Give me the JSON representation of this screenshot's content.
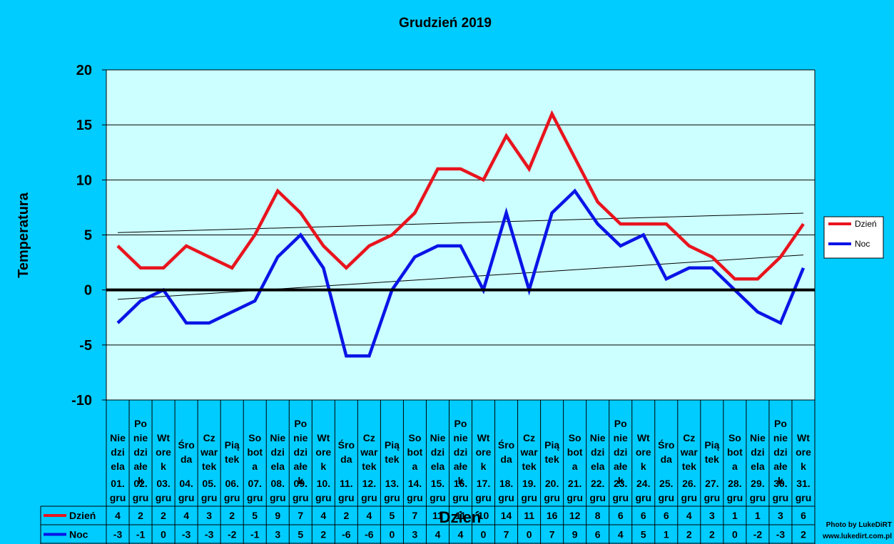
{
  "chart_data": {
    "type": "line",
    "title": "Grudzień 2019",
    "xlabel": "Dzień",
    "ylabel": "Temperatura",
    "ylim": [
      -10,
      20
    ],
    "yticks": [
      20,
      15,
      10,
      5,
      0,
      -5,
      -10
    ],
    "grid": true,
    "legend_position": "right",
    "categories": [
      {
        "weekday": [
          "Nie",
          "dzi",
          "ela"
        ],
        "date": [
          "01.",
          "gru"
        ]
      },
      {
        "weekday": [
          "Po",
          "nie",
          "dzi",
          "ałe",
          "k"
        ],
        "date": [
          "02.",
          "gru"
        ]
      },
      {
        "weekday": [
          "Wt",
          "ore",
          "k"
        ],
        "date": [
          "03.",
          "gru"
        ]
      },
      {
        "weekday": [
          "Śro",
          "da"
        ],
        "date": [
          "04.",
          "gru"
        ]
      },
      {
        "weekday": [
          "Cz",
          "war",
          "tek"
        ],
        "date": [
          "05.",
          "gru"
        ]
      },
      {
        "weekday": [
          "Pią",
          "tek"
        ],
        "date": [
          "06.",
          "gru"
        ]
      },
      {
        "weekday": [
          "So",
          "bot",
          "a"
        ],
        "date": [
          "07.",
          "gru"
        ]
      },
      {
        "weekday": [
          "Nie",
          "dzi",
          "ela"
        ],
        "date": [
          "08.",
          "gru"
        ]
      },
      {
        "weekday": [
          "Po",
          "nie",
          "dzi",
          "ałe",
          "k"
        ],
        "date": [
          "09.",
          "gru"
        ]
      },
      {
        "weekday": [
          "Wt",
          "ore",
          "k"
        ],
        "date": [
          "10.",
          "gru"
        ]
      },
      {
        "weekday": [
          "Śro",
          "da"
        ],
        "date": [
          "11.",
          "gru"
        ]
      },
      {
        "weekday": [
          "Cz",
          "war",
          "tek"
        ],
        "date": [
          "12.",
          "gru"
        ]
      },
      {
        "weekday": [
          "Pią",
          "tek"
        ],
        "date": [
          "13.",
          "gru"
        ]
      },
      {
        "weekday": [
          "So",
          "bot",
          "a"
        ],
        "date": [
          "14.",
          "gru"
        ]
      },
      {
        "weekday": [
          "Nie",
          "dzi",
          "ela"
        ],
        "date": [
          "15.",
          "gru"
        ]
      },
      {
        "weekday": [
          "Po",
          "nie",
          "dzi",
          "ałe",
          "k"
        ],
        "date": [
          "16.",
          "gru"
        ]
      },
      {
        "weekday": [
          "Wt",
          "ore",
          "k"
        ],
        "date": [
          "17.",
          "gru"
        ]
      },
      {
        "weekday": [
          "Śro",
          "da"
        ],
        "date": [
          "18.",
          "gru"
        ]
      },
      {
        "weekday": [
          "Cz",
          "war",
          "tek"
        ],
        "date": [
          "19.",
          "gru"
        ]
      },
      {
        "weekday": [
          "Pią",
          "tek"
        ],
        "date": [
          "20.",
          "gru"
        ]
      },
      {
        "weekday": [
          "So",
          "bot",
          "a"
        ],
        "date": [
          "21.",
          "gru"
        ]
      },
      {
        "weekday": [
          "Nie",
          "dzi",
          "ela"
        ],
        "date": [
          "22.",
          "gru"
        ]
      },
      {
        "weekday": [
          "Po",
          "nie",
          "dzi",
          "ałe",
          "k"
        ],
        "date": [
          "23.",
          "gru"
        ]
      },
      {
        "weekday": [
          "Wt",
          "ore",
          "k"
        ],
        "date": [
          "24.",
          "gru"
        ]
      },
      {
        "weekday": [
          "Śro",
          "da"
        ],
        "date": [
          "25.",
          "gru"
        ]
      },
      {
        "weekday": [
          "Cz",
          "war",
          "tek"
        ],
        "date": [
          "26.",
          "gru"
        ]
      },
      {
        "weekday": [
          "Pią",
          "tek"
        ],
        "date": [
          "27.",
          "gru"
        ]
      },
      {
        "weekday": [
          "So",
          "bot",
          "a"
        ],
        "date": [
          "28.",
          "gru"
        ]
      },
      {
        "weekday": [
          "Nie",
          "dzi",
          "ela"
        ],
        "date": [
          "29.",
          "gru"
        ]
      },
      {
        "weekday": [
          "Po",
          "nie",
          "dzi",
          "ałe",
          "k"
        ],
        "date": [
          "30.",
          "gru"
        ]
      },
      {
        "weekday": [
          "Wt",
          "ore",
          "k"
        ],
        "date": [
          "31.",
          "gru"
        ]
      }
    ],
    "series": [
      {
        "name": "Dzień",
        "color": "#e8141e",
        "values": [
          4,
          2,
          2,
          4,
          3,
          2,
          5,
          9,
          7,
          4,
          2,
          4,
          5,
          7,
          11,
          11,
          10,
          14,
          11,
          16,
          12,
          8,
          6,
          6,
          6,
          4,
          3,
          1,
          1,
          3,
          6
        ]
      },
      {
        "name": "Noc",
        "color": "#0a14e6",
        "values": [
          -3,
          -1,
          0,
          -3,
          -3,
          -2,
          -1,
          3,
          5,
          2,
          -6,
          -6,
          0,
          3,
          4,
          4,
          0,
          7,
          0,
          7,
          9,
          6,
          4,
          5,
          1,
          2,
          2,
          0,
          -2,
          -3,
          2
        ]
      }
    ],
    "trendlines": true
  },
  "credit": {
    "line1": "Photo by LukeDiRT",
    "line2": "www.lukedirt.com.pl"
  },
  "colors": {
    "background": "#00ccff",
    "plot_area": "#ccffff"
  }
}
